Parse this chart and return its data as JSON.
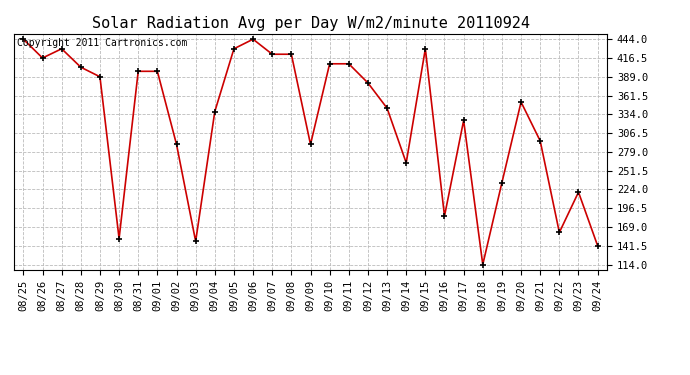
{
  "title": "Solar Radiation Avg per Day W/m2/minute 20110924",
  "copyright": "Copyright 2011 Cartronics.com",
  "dates": [
    "08/25",
    "08/26",
    "08/27",
    "08/28",
    "08/29",
    "08/30",
    "08/31",
    "09/01",
    "09/02",
    "09/03",
    "09/04",
    "09/05",
    "09/06",
    "09/07",
    "09/08",
    "09/09",
    "09/10",
    "09/11",
    "09/12",
    "09/13",
    "09/14",
    "09/15",
    "09/16",
    "09/17",
    "09/18",
    "09/19",
    "09/20",
    "09/21",
    "09/22",
    "09/23",
    "09/24"
  ],
  "values": [
    444.0,
    416.5,
    430.0,
    403.0,
    389.0,
    152.0,
    397.0,
    397.0,
    290.0,
    148.0,
    338.0,
    430.0,
    444.0,
    422.0,
    422.0,
    290.0,
    408.0,
    408.0,
    380.0,
    343.0,
    263.0,
    430.0,
    185.0,
    325.0,
    114.0,
    234.0,
    352.0,
    295.0,
    161.0,
    220.0,
    141.5
  ],
  "line_color": "#cc0000",
  "marker_color": "#000000",
  "bg_color": "#ffffff",
  "grid_color": "#bbbbbb",
  "ymin": 114.0,
  "ymax": 444.0,
  "yticks": [
    114.0,
    141.5,
    169.0,
    196.5,
    224.0,
    251.5,
    279.0,
    306.5,
    334.0,
    361.5,
    389.0,
    416.5,
    444.0
  ],
  "title_fontsize": 11,
  "copyright_fontsize": 7,
  "tick_fontsize": 7.5
}
